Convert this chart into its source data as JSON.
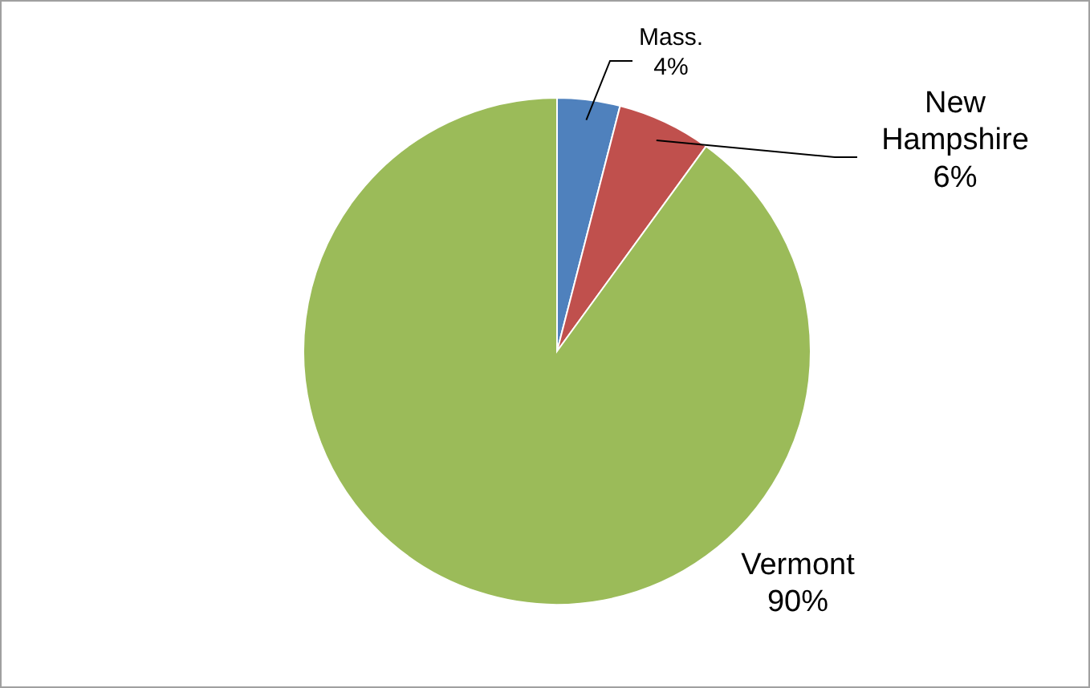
{
  "chart_data": {
    "type": "pie",
    "categories": [
      "Mass.",
      "New Hampshire",
      "Vermont"
    ],
    "values": [
      4,
      6,
      90
    ],
    "colors": [
      "#4f81bd",
      "#c0504d",
      "#9bbb59"
    ],
    "value_labels": [
      "4%",
      "6%",
      "90%"
    ],
    "legend": false
  }
}
